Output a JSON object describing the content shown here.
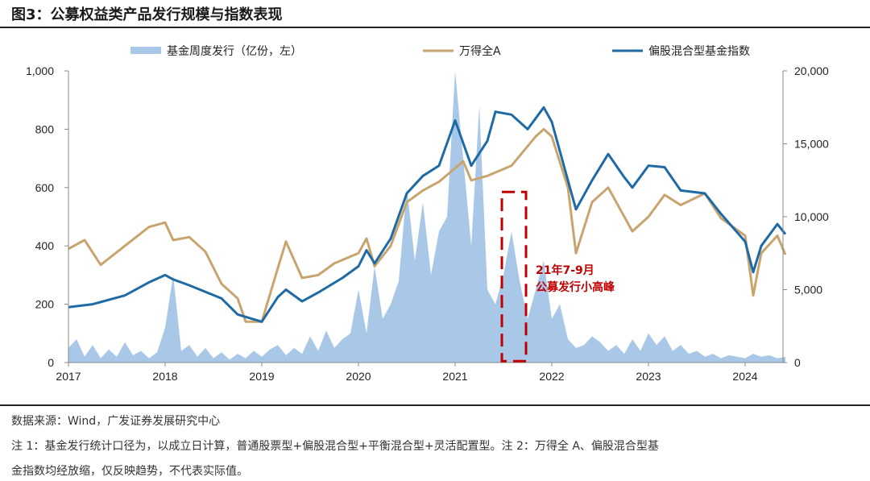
{
  "title": "图3：公募权益类产品发行规模与指数表现",
  "source": "数据来源：Wind，广发证券发展研究中心",
  "note_line1": "注 1：基金发行统计口径为，以成立日计算，普通股票型+偏股混合型+平衡混合型+灵活配置型。注 2：万得全 A、偏股混合型基",
  "note_line2": "金指数均经放缩，仅反映趋势，不代表实际值。",
  "chart_data": {
    "type": "area+line",
    "title": "",
    "xlabel": "",
    "ylabel_left": "",
    "ylabel_right": "",
    "x_ticks": [
      "2017",
      "2018",
      "2019",
      "2020",
      "2021",
      "2022",
      "2023",
      "2024"
    ],
    "xlim": [
      "2017-01",
      "2024-06"
    ],
    "y_left": {
      "lim": [
        0,
        1000
      ],
      "ticks": [
        "0",
        "200",
        "400",
        "600",
        "800",
        "1,000"
      ]
    },
    "y_right": {
      "lim": [
        0,
        20000
      ],
      "ticks": [
        "0",
        "5,000",
        "10,000",
        "15,000",
        "20,000"
      ]
    },
    "grid": false,
    "legend_position": "top",
    "series": [
      {
        "name": "基金周度发行（亿份，左）",
        "axis": "left",
        "kind": "area",
        "color": "#a9c8e8",
        "points": [
          [
            "2017-01",
            0
          ],
          [
            "2017-01",
            50
          ],
          [
            "2017-02",
            80
          ],
          [
            "2017-03",
            20
          ],
          [
            "2017-04",
            60
          ],
          [
            "2017-05",
            15
          ],
          [
            "2017-06",
            45
          ],
          [
            "2017-07",
            20
          ],
          [
            "2017-08",
            70
          ],
          [
            "2017-09",
            25
          ],
          [
            "2017-10",
            40
          ],
          [
            "2017-11",
            15
          ],
          [
            "2017-12",
            35
          ],
          [
            "2018-01",
            120
          ],
          [
            "2018-02",
            300
          ],
          [
            "2018-03",
            40
          ],
          [
            "2018-04",
            60
          ],
          [
            "2018-05",
            20
          ],
          [
            "2018-06",
            50
          ],
          [
            "2018-07",
            15
          ],
          [
            "2018-08",
            35
          ],
          [
            "2018-09",
            10
          ],
          [
            "2018-10",
            30
          ],
          [
            "2018-11",
            15
          ],
          [
            "2018-12",
            40
          ],
          [
            "2019-01",
            20
          ],
          [
            "2019-02",
            45
          ],
          [
            "2019-03",
            60
          ],
          [
            "2019-04",
            25
          ],
          [
            "2019-05",
            50
          ],
          [
            "2019-06",
            30
          ],
          [
            "2019-07",
            90
          ],
          [
            "2019-08",
            40
          ],
          [
            "2019-09",
            110
          ],
          [
            "2019-10",
            50
          ],
          [
            "2019-11",
            80
          ],
          [
            "2019-12",
            100
          ],
          [
            "2020-01",
            250
          ],
          [
            "2020-02",
            100
          ],
          [
            "2020-03",
            330
          ],
          [
            "2020-04",
            150
          ],
          [
            "2020-05",
            200
          ],
          [
            "2020-06",
            280
          ],
          [
            "2020-07",
            600
          ],
          [
            "2020-08",
            350
          ],
          [
            "2020-09",
            550
          ],
          [
            "2020-10",
            300
          ],
          [
            "2020-11",
            450
          ],
          [
            "2020-12",
            500
          ],
          [
            "2021-01",
            1000
          ],
          [
            "2021-02",
            700
          ],
          [
            "2021-03",
            400
          ],
          [
            "2021-04",
            880
          ],
          [
            "2021-05",
            250
          ],
          [
            "2021-06",
            200
          ],
          [
            "2021-07",
            300
          ],
          [
            "2021-08",
            450
          ],
          [
            "2021-09",
            280
          ],
          [
            "2021-10",
            150
          ],
          [
            "2021-11",
            250
          ],
          [
            "2021-12",
            350
          ],
          [
            "2022-01",
            150
          ],
          [
            "2022-02",
            200
          ],
          [
            "2022-03",
            80
          ],
          [
            "2022-04",
            50
          ],
          [
            "2022-05",
            60
          ],
          [
            "2022-06",
            90
          ],
          [
            "2022-07",
            70
          ],
          [
            "2022-08",
            40
          ],
          [
            "2022-09",
            60
          ],
          [
            "2022-10",
            30
          ],
          [
            "2022-11",
            80
          ],
          [
            "2022-12",
            40
          ],
          [
            "2023-01",
            100
          ],
          [
            "2023-02",
            60
          ],
          [
            "2023-03",
            90
          ],
          [
            "2023-04",
            40
          ],
          [
            "2023-05",
            60
          ],
          [
            "2023-06",
            30
          ],
          [
            "2023-07",
            40
          ],
          [
            "2023-08",
            20
          ],
          [
            "2023-09",
            30
          ],
          [
            "2023-10",
            15
          ],
          [
            "2023-11",
            25
          ],
          [
            "2023-12",
            20
          ],
          [
            "2024-01",
            15
          ],
          [
            "2024-02",
            30
          ],
          [
            "2024-03",
            20
          ],
          [
            "2024-04",
            25
          ],
          [
            "2024-05",
            15
          ],
          [
            "2024-06",
            20
          ],
          [
            "2024-06",
            0
          ]
        ]
      },
      {
        "name": "万得全A",
        "axis": "right",
        "kind": "line",
        "color": "#c8a46e",
        "points": [
          [
            "2017-01",
            7800
          ],
          [
            "2017-03",
            8400
          ],
          [
            "2017-05",
            6700
          ],
          [
            "2017-08",
            8000
          ],
          [
            "2017-11",
            9300
          ],
          [
            "2018-01",
            9600
          ],
          [
            "2018-02",
            8400
          ],
          [
            "2018-04",
            8600
          ],
          [
            "2018-06",
            7600
          ],
          [
            "2018-08",
            5400
          ],
          [
            "2018-10",
            4400
          ],
          [
            "2018-11",
            2800
          ],
          [
            "2019-01",
            2800
          ],
          [
            "2019-03",
            6500
          ],
          [
            "2019-04",
            8300
          ],
          [
            "2019-06",
            5800
          ],
          [
            "2019-08",
            6000
          ],
          [
            "2019-10",
            6800
          ],
          [
            "2020-01",
            7500
          ],
          [
            "2020-02",
            8500
          ],
          [
            "2020-03",
            6600
          ],
          [
            "2020-05",
            8000
          ],
          [
            "2020-07",
            11000
          ],
          [
            "2020-09",
            11800
          ],
          [
            "2020-11",
            12400
          ],
          [
            "2021-02",
            13800
          ],
          [
            "2021-03",
            12500
          ],
          [
            "2021-05",
            12800
          ],
          [
            "2021-08",
            13500
          ],
          [
            "2021-11",
            15500
          ],
          [
            "2021-12",
            16000
          ],
          [
            "2022-01",
            15500
          ],
          [
            "2022-03",
            12000
          ],
          [
            "2022-04",
            7500
          ],
          [
            "2022-06",
            11000
          ],
          [
            "2022-08",
            12000
          ],
          [
            "2022-10",
            10000
          ],
          [
            "2022-11",
            9000
          ],
          [
            "2023-01",
            10000
          ],
          [
            "2023-03",
            11500
          ],
          [
            "2023-05",
            10800
          ],
          [
            "2023-08",
            11600
          ],
          [
            "2023-10",
            9900
          ],
          [
            "2024-01",
            8700
          ],
          [
            "2024-02",
            4600
          ],
          [
            "2024-03",
            7500
          ],
          [
            "2024-05",
            8700
          ],
          [
            "2024-06",
            7400
          ]
        ]
      },
      {
        "name": "偏股混合型基金指数",
        "axis": "right",
        "kind": "line",
        "color": "#1f6aa5",
        "points": [
          [
            "2017-01",
            3800
          ],
          [
            "2017-04",
            4000
          ],
          [
            "2017-08",
            4600
          ],
          [
            "2017-11",
            5500
          ],
          [
            "2018-01",
            6000
          ],
          [
            "2018-02",
            5700
          ],
          [
            "2018-04",
            5300
          ],
          [
            "2018-08",
            4400
          ],
          [
            "2018-10",
            3300
          ],
          [
            "2019-01",
            2800
          ],
          [
            "2019-03",
            4500
          ],
          [
            "2019-04",
            5000
          ],
          [
            "2019-06",
            4200
          ],
          [
            "2019-08",
            4800
          ],
          [
            "2019-11",
            5800
          ],
          [
            "2020-01",
            6600
          ],
          [
            "2020-02",
            7700
          ],
          [
            "2020-03",
            6800
          ],
          [
            "2020-05",
            8500
          ],
          [
            "2020-07",
            11600
          ],
          [
            "2020-09",
            12800
          ],
          [
            "2020-11",
            13500
          ],
          [
            "2021-01",
            16600
          ],
          [
            "2021-03",
            13500
          ],
          [
            "2021-05",
            15200
          ],
          [
            "2021-06",
            17200
          ],
          [
            "2021-08",
            17000
          ],
          [
            "2021-10",
            16000
          ],
          [
            "2021-12",
            17500
          ],
          [
            "2022-01",
            16500
          ],
          [
            "2022-03",
            12500
          ],
          [
            "2022-04",
            10500
          ],
          [
            "2022-06",
            12500
          ],
          [
            "2022-08",
            14300
          ],
          [
            "2022-10",
            12700
          ],
          [
            "2022-11",
            12000
          ],
          [
            "2023-01",
            13500
          ],
          [
            "2023-03",
            13400
          ],
          [
            "2023-05",
            11800
          ],
          [
            "2023-08",
            11600
          ],
          [
            "2023-10",
            10200
          ],
          [
            "2024-01",
            8300
          ],
          [
            "2024-02",
            6200
          ],
          [
            "2024-03",
            8000
          ],
          [
            "2024-05",
            9500
          ],
          [
            "2024-06",
            8800
          ]
        ]
      }
    ],
    "annotation": {
      "line1": "21年7-9月",
      "line2": "公募发行小高峰",
      "color": "#c00000",
      "x_range": [
        "2021-07",
        "2021-09"
      ],
      "y_range_left": [
        5,
        585
      ]
    }
  }
}
